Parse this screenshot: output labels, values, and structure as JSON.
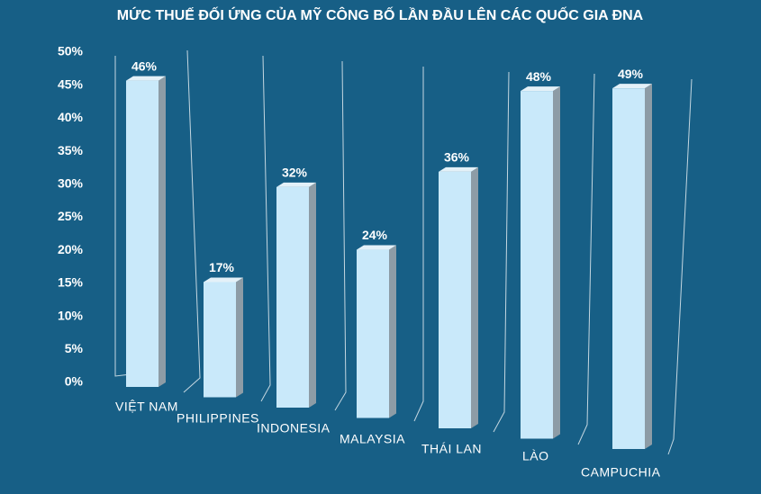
{
  "chart_data": {
    "type": "bar3d",
    "title": "MỨC THUẾ ĐỐI ỨNG CỦA MỸ CÔNG BỐ LẦN ĐẦU LÊN CÁC QUỐC GIA ĐNA",
    "categories": [
      "VIỆT NAM",
      "PHILIPPINES",
      "INDONESIA",
      "MALAYSIA",
      "THÁI LAN",
      "LÀO",
      "CAMPUCHIA"
    ],
    "values": [
      46,
      17,
      32,
      24,
      36,
      48,
      49
    ],
    "value_labels": [
      "46%",
      "17%",
      "32%",
      "24%",
      "36%",
      "48%",
      "49%"
    ],
    "color": "#c9e9fa",
    "ylim": [
      0,
      50
    ],
    "yticks": [
      {
        "value": 0,
        "label": "0%"
      },
      {
        "value": 5,
        "label": "5%"
      },
      {
        "value": 10,
        "label": "10%"
      },
      {
        "value": 15,
        "label": "15%"
      },
      {
        "value": 20,
        "label": "20%"
      },
      {
        "value": 25,
        "label": "25%"
      },
      {
        "value": 30,
        "label": "30%"
      },
      {
        "value": 35,
        "label": "35%"
      },
      {
        "value": 40,
        "label": "40%"
      },
      {
        "value": 45,
        "label": "45%"
      },
      {
        "value": 50,
        "label": "50%"
      }
    ]
  }
}
